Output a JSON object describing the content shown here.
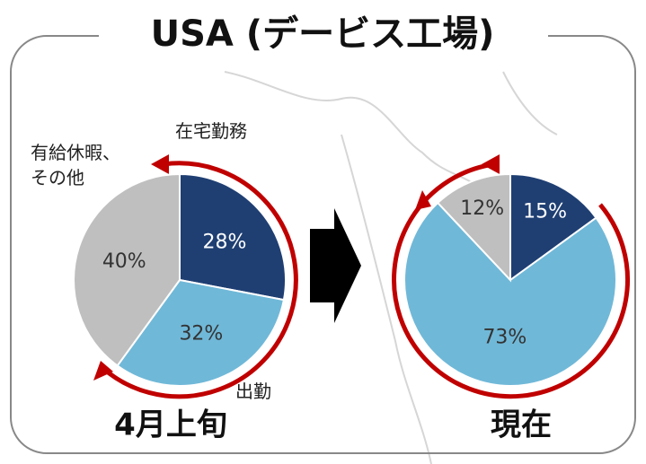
{
  "title": "USA (デービス工場)",
  "chart_data": [
    {
      "type": "pie",
      "title": "4月上旬",
      "categories": [
        "在宅勤務",
        "出勤",
        "有給休暇、その他"
      ],
      "values": [
        28,
        32,
        40
      ],
      "value_labels": [
        "28%",
        "32%",
        "40%"
      ],
      "colors": [
        "#1f3f73",
        "#70b8d8",
        "#bfbfbf"
      ]
    },
    {
      "type": "pie",
      "title": "現在",
      "categories": [
        null,
        null,
        null
      ],
      "values": [
        15,
        73,
        12
      ],
      "value_labels": [
        "15%",
        "73%",
        "12%"
      ],
      "colors": [
        "#1f3f73",
        "#70b8d8",
        "#bfbfbf"
      ]
    }
  ]
}
